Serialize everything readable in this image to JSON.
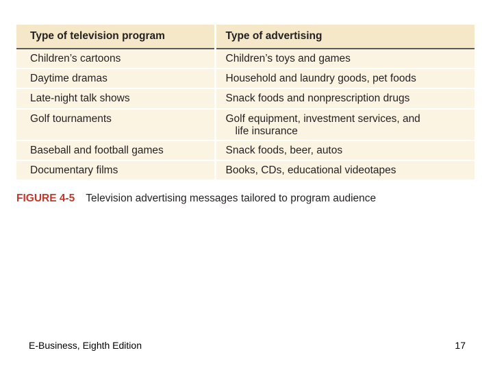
{
  "table": {
    "headers": [
      "Type of television program",
      "Type of advertising"
    ],
    "rows": [
      {
        "program": "Children’s cartoons",
        "advertising": [
          "Children’s toys and games"
        ]
      },
      {
        "program": "Daytime dramas",
        "advertising": [
          "Household and laundry goods, pet foods"
        ]
      },
      {
        "program": "Late-night talk shows",
        "advertising": [
          "Snack foods and nonprescription drugs"
        ]
      },
      {
        "program": "Golf tournaments",
        "advertising": [
          "Golf equipment, investment services, and",
          "life insurance"
        ]
      },
      {
        "program": "Baseball and football games",
        "advertising": [
          "Snack foods, beer, autos"
        ]
      },
      {
        "program": "Documentary films",
        "advertising": [
          "Books, CDs, educational videotapes"
        ]
      }
    ]
  },
  "caption": {
    "figure_label": "FIGURE 4-5",
    "text": "Television advertising messages tailored to program audience",
    "label_color": "#c0392b"
  },
  "footer": {
    "book_title": "E-Business, Eighth Edition",
    "page_number": "17"
  }
}
